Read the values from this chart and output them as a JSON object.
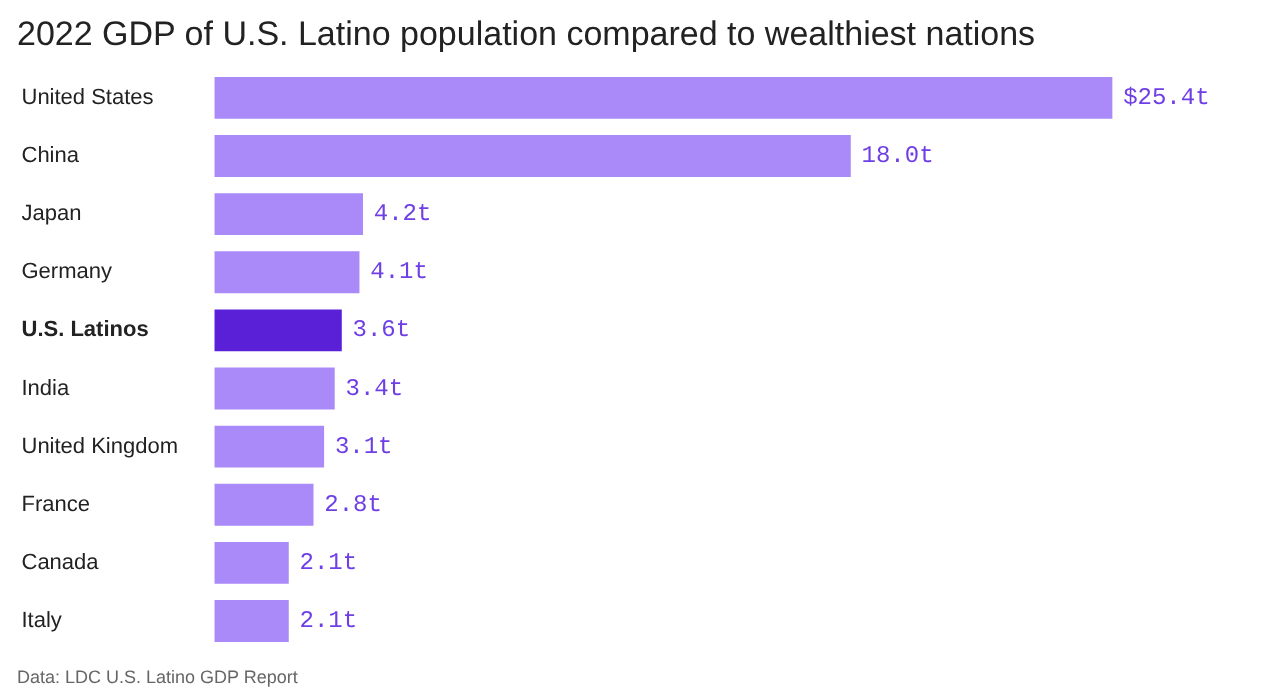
{
  "chart_data": {
    "type": "bar",
    "orientation": "horizontal",
    "title": "2022 GDP of U.S. Latino population compared to wealthiest nations",
    "categories": [
      "United States",
      "China",
      "Japan",
      "Germany",
      "U.S. Latinos",
      "India",
      "United Kingdom",
      "France",
      "Canada",
      "Italy"
    ],
    "values": [
      25.4,
      18.0,
      4.2,
      4.1,
      3.6,
      3.4,
      3.1,
      2.8,
      2.1,
      2.1
    ],
    "colors": [
      "#a98af8",
      "#a98af8",
      "#a98af8",
      "#a98af8",
      "#5a20d8",
      "#a98af8",
      "#a98af8",
      "#a98af8",
      "#a98af8",
      "#a98af8"
    ],
    "value_labels": [
      "$25.4t",
      "18.0t",
      "4.2t",
      "4.1t",
      "3.6t",
      "3.4t",
      "3.1t",
      "2.8t",
      "2.1t",
      "2.1t"
    ],
    "annotations": [
      "Data: LDC U.S. Latino GDP Report"
    ],
    "grid": false
  }
}
